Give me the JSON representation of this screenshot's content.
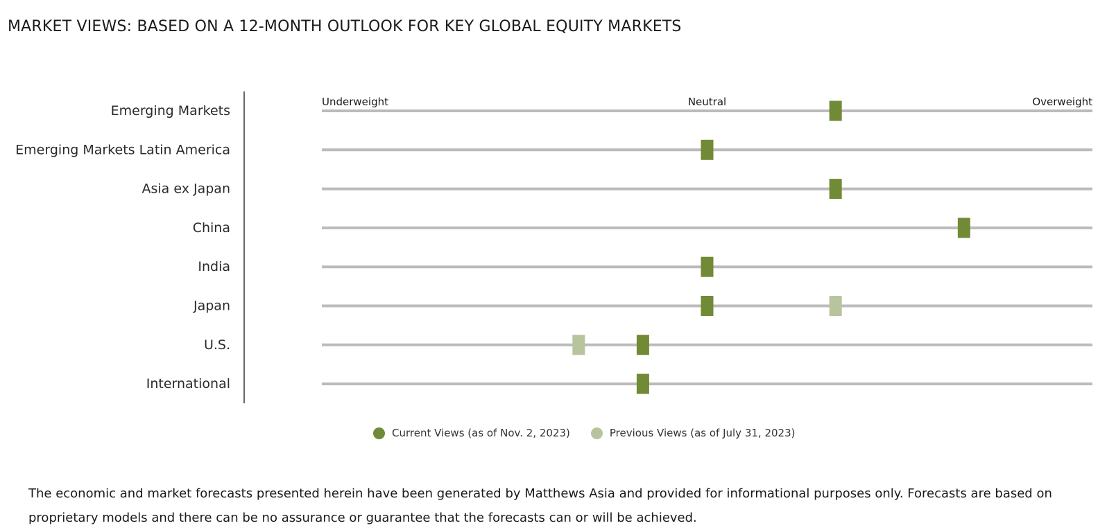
{
  "title": "MARKET VIEWS: BASED ON A 12-MONTH OUTLOOK FOR KEY GLOBAL EQUITY MARKETS",
  "colors": {
    "current": "#718a36",
    "previous": "#b8c49e",
    "track": "#bbbbbb",
    "axis_line": "#333333"
  },
  "legend": {
    "current_label": "Current Views (as of Nov. 2, 2023)",
    "previous_label": "Previous Views (as of July 31, 2023)"
  },
  "footnote": "The economic and market forecasts presented herein have been generated by Matthews Asia and provided for informational purposes only. Forecasts are based on proprietary models and there can be no assurance or guarantee that the forecasts can or will be achieved.",
  "chart_data": {
    "type": "scatter",
    "scale": {
      "min": 0,
      "max": 6,
      "labels": [
        {
          "text": "Underweight",
          "value": 0
        },
        {
          "text": "Neutral",
          "value": 3
        },
        {
          "text": "Overweight",
          "value": 6
        }
      ]
    },
    "categories": [
      "Emerging Markets",
      "Emerging Markets Latin America",
      "Asia ex Japan",
      "China",
      "India",
      "Japan",
      "U.S.",
      "International"
    ],
    "series": [
      {
        "name": "Current Views (as of Nov. 2, 2023)",
        "values": [
          4,
          3,
          4,
          5,
          3,
          3,
          2.5,
          2.5
        ]
      },
      {
        "name": "Previous Views (as of July 31, 2023)",
        "values": [
          null,
          null,
          null,
          null,
          null,
          4,
          2,
          null
        ]
      }
    ],
    "grid": false,
    "legend_position": "bottom-center"
  }
}
